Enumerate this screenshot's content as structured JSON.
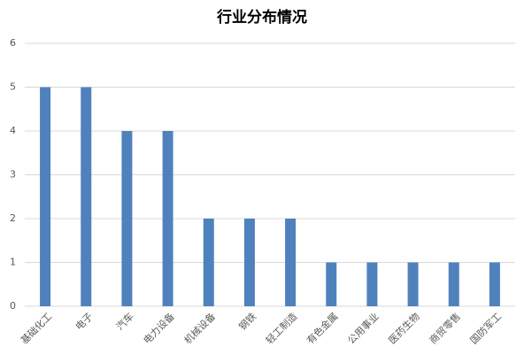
{
  "chart_data": {
    "type": "bar",
    "title": "行业分布情况",
    "categories": [
      "基础化工",
      "电子",
      "汽车",
      "电力设备",
      "机械设备",
      "钢铁",
      "轻工制造",
      "有色金属",
      "公用事业",
      "医药生物",
      "商贸零售",
      "国防军工"
    ],
    "values": [
      5,
      5,
      4,
      4,
      2,
      2,
      2,
      1,
      1,
      1,
      1,
      1
    ],
    "color": "#4f81bd",
    "ylim": [
      0,
      6
    ],
    "yticks": [
      0,
      1,
      2,
      3,
      4,
      5,
      6
    ],
    "grid": true
  }
}
